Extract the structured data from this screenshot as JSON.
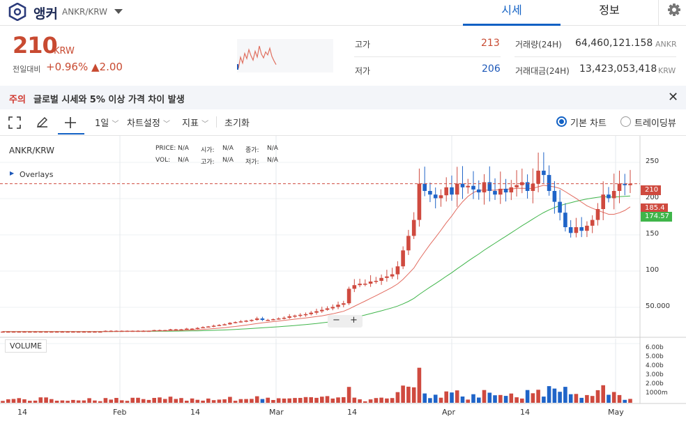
{
  "header": {
    "coin_name": "앵커",
    "pair": "ANKR/KRW",
    "tabs": [
      {
        "label": "시세",
        "active": true
      },
      {
        "label": "정보",
        "active": false
      }
    ]
  },
  "ticker": {
    "price": "210",
    "unit": "KRW",
    "change_label": "전일대비",
    "change_pct": "+0.96%",
    "change_abs": "▲2.00",
    "high_label": "고가",
    "high": "213",
    "low_label": "저가",
    "low": "206",
    "vol_label": "거래량(24H)",
    "vol_value": "64,460,121.158",
    "vol_unit": "ANKR",
    "amt_label": "거래대금(24H)",
    "amt_value": "13,423,053,418",
    "amt_unit": "KRW",
    "sparkline": [
      55,
      70,
      62,
      75,
      68,
      80,
      72,
      66,
      78,
      70,
      85,
      74,
      69,
      77,
      73,
      82,
      71,
      65,
      60
    ]
  },
  "notice": {
    "label": "주의",
    "text": "글로벌 시세와 5% 이상 가격 차이 발생"
  },
  "toolbar": {
    "interval": "1일",
    "chart_settings": "차트설정",
    "indicators": "지표",
    "reset": "초기화",
    "basic_chart": "기본 차트",
    "trading_view": "트레이딩뷰"
  },
  "chart": {
    "symbol": "ANKR/KRW",
    "overlays": "Overlays",
    "ohlc": {
      "price_label": "PRICE:",
      "price": "N/A",
      "open_label": "시가:",
      "open": "N/A",
      "close_label": "종가:",
      "close": "N/A",
      "vol_label": "VOL:",
      "vol": "N/A",
      "high_label": "고가:",
      "high": "N/A",
      "low_label": "저가:",
      "low": "N/A"
    },
    "volume_label": "VOLUME",
    "price_ticks": [
      "250",
      "200",
      "150",
      "100",
      "50.000"
    ],
    "volume_ticks": [
      "6.00b",
      "5.00b",
      "4.00b",
      "3.00b",
      "2.00b",
      "1000m"
    ],
    "x_ticks": [
      "14",
      "Feb",
      "14",
      "Mar",
      "14",
      "Apr",
      "14",
      "May"
    ],
    "tags": {
      "last": "210",
      "ma_red": "185.4",
      "ma_green": "174.57"
    },
    "colors": {
      "up": "#cf4a3f",
      "down": "#1f64c8",
      "ma_short": "#e26b5f",
      "ma_long": "#3fb54a"
    }
  },
  "chart_data": {
    "type": "candlestick",
    "interval": "1일",
    "x_ticks": [
      "14",
      "Feb",
      "14",
      "Mar",
      "14",
      "Apr",
      "14",
      "May"
    ],
    "ylim": [
      0,
      290
    ],
    "close_series": [
      6,
      6,
      6,
      6,
      6,
      6,
      6,
      6,
      6,
      6,
      6,
      6,
      6,
      6,
      6,
      6,
      6,
      6,
      6,
      7,
      7,
      7,
      7,
      7,
      7,
      7,
      7,
      7,
      8,
      8,
      8,
      9,
      9,
      9,
      10,
      10,
      11,
      12,
      13,
      14,
      15,
      16,
      18,
      19,
      20,
      21,
      22,
      24,
      22,
      22,
      23,
      24,
      25,
      27,
      28,
      29,
      30,
      32,
      34,
      36,
      38,
      40,
      43,
      45,
      65,
      70,
      72,
      72,
      75,
      76,
      80,
      82,
      85,
      96,
      118,
      138,
      160,
      210,
      200,
      195,
      190,
      194,
      205,
      195,
      210,
      205,
      207,
      202,
      198,
      212,
      200,
      195,
      203,
      198,
      205,
      208,
      212,
      200,
      210,
      228,
      222,
      200,
      185,
      170,
      150,
      142,
      150,
      145,
      152,
      160,
      175,
      195,
      190,
      200,
      210,
      208,
      210
    ]
  }
}
